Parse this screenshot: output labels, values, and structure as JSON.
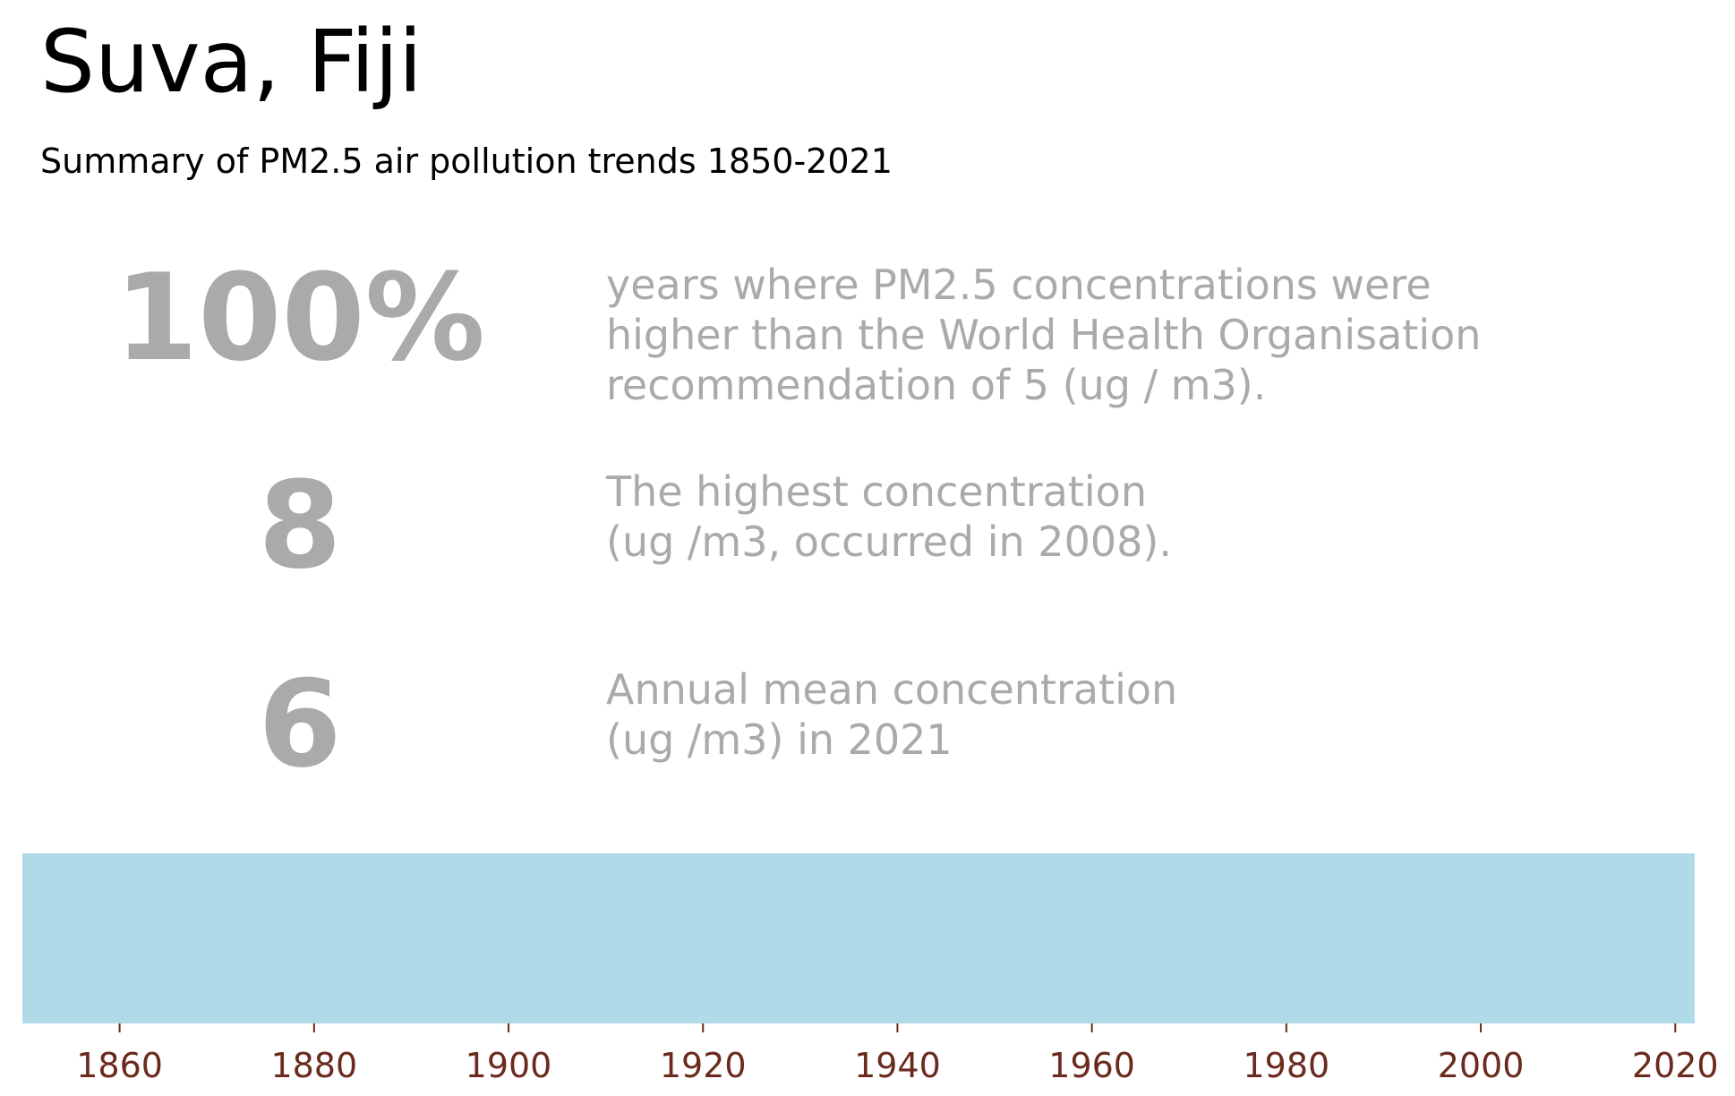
{
  "header": {
    "title": "Suva, Fiji",
    "subtitle": "Summary of PM2.5 air pollution trends 1850-2021"
  },
  "stats": [
    {
      "value": "100%",
      "description_lines": [
        "years where PM2.5 concentrations were",
        "higher than the World Health Organisation",
        "recommendation of 5 (ug / m3)."
      ]
    },
    {
      "value": "8",
      "description_lines": [
        "The highest concentration",
        "(ug /m3, occurred in 2008)."
      ]
    },
    {
      "value": "6",
      "description_lines": [
        "Annual mean concentration",
        "(ug /m3) in 2021"
      ]
    }
  ],
  "chart_data": {
    "type": "heatmap",
    "title": "",
    "xlabel": "",
    "ylabel": "",
    "xlim": [
      1850,
      2022
    ],
    "x_ticks": [
      1860,
      1880,
      1900,
      1920,
      1940,
      1960,
      1980,
      2000,
      2020
    ],
    "stripes": [
      {
        "start": 1850,
        "end": 2022,
        "color": "#b1dae9"
      }
    ],
    "grid": false,
    "colors": {
      "stripe": "#b1dae9",
      "tick_label": "#6b2a1e",
      "tick_mark": "#6b2a1e"
    }
  }
}
